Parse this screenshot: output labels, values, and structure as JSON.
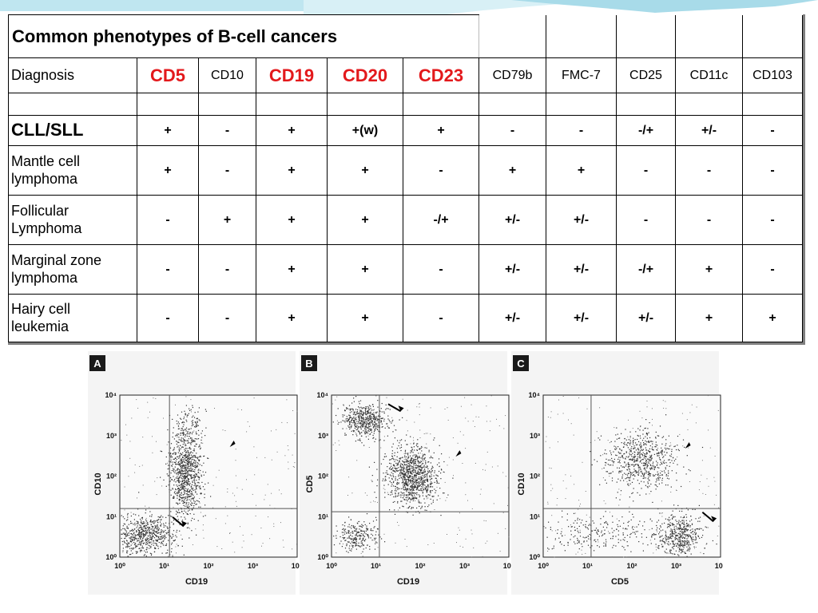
{
  "table": {
    "title": "Common phenotypes of B-cell cancers",
    "header_label": "Diagnosis",
    "markers": [
      {
        "name": "CD5",
        "highlight": true
      },
      {
        "name": "CD10",
        "highlight": false
      },
      {
        "name": "CD19",
        "highlight": true
      },
      {
        "name": "CD20",
        "highlight": true
      },
      {
        "name": "CD23",
        "highlight": true
      },
      {
        "name": "CD79b",
        "highlight": false
      },
      {
        "name": "FMC-7",
        "highlight": false
      },
      {
        "name": "CD25",
        "highlight": false
      },
      {
        "name": "CD11c",
        "highlight": false
      },
      {
        "name": "CD103",
        "highlight": false
      }
    ],
    "rows": [
      {
        "label": "CLL/SLL",
        "highlight": true,
        "values": [
          "+",
          "-",
          "+",
          "+(w)",
          "+",
          "-",
          "-",
          "-/+",
          "+/-",
          "-"
        ]
      },
      {
        "label": "Mantle cell lymphoma",
        "highlight": false,
        "values": [
          "+",
          "-",
          "+",
          "+",
          "-",
          "+",
          "+",
          "-",
          "-",
          "-"
        ]
      },
      {
        "label": "Follicular Lymphoma",
        "highlight": false,
        "values": [
          "-",
          "+",
          "+",
          "+",
          "-/+",
          "+/-",
          "+/-",
          "-",
          "-",
          "-"
        ]
      },
      {
        "label": "Marginal zone lymphoma",
        "highlight": false,
        "values": [
          "-",
          "-",
          "+",
          "+",
          "-",
          "+/-",
          "+/-",
          "-/+",
          "+",
          "-"
        ]
      },
      {
        "label": "Hairy cell leukemia",
        "highlight": false,
        "values": [
          "-",
          "-",
          "+",
          "+",
          "-",
          "+/-",
          "+/-",
          "+/-",
          "+",
          "+"
        ]
      }
    ],
    "label_lines": {
      "mantle": [
        "Mantle cell",
        "lymphoma"
      ],
      "follicular": [
        "Follicular",
        "Lymphoma"
      ],
      "marginal": [
        "Marginal zone",
        "lymphoma"
      ],
      "hairy": [
        "Hairy cell",
        "leukemia"
      ]
    }
  },
  "panels": [
    {
      "letter": "A",
      "xlabel": "CD19",
      "ylabel": "CD10",
      "ticks": [
        "10⁰",
        "10¹",
        "10²",
        "10³",
        "10⁴"
      ]
    },
    {
      "letter": "B",
      "xlabel": "CD19",
      "ylabel": "CD5",
      "ticks": [
        "10⁰",
        "10¹",
        "10²",
        "10³",
        "10⁴"
      ]
    },
    {
      "letter": "C",
      "xlabel": "CD5",
      "ylabel": "CD10",
      "ticks": [
        "10⁰",
        "10¹",
        "10²",
        "10³",
        "10⁴"
      ]
    }
  ],
  "colors": {
    "highlight": "#e3191c",
    "frame": "#7f7f7f",
    "decor": "#9fd7e6"
  }
}
